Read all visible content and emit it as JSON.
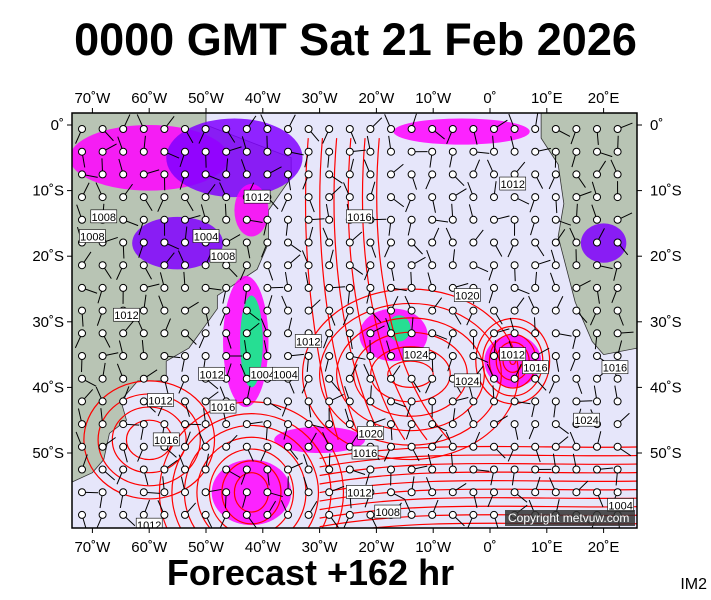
{
  "header": {
    "title": "0000 GMT Sat 21 Feb 2026"
  },
  "footer": {
    "forecast": "Forecast +162 hr",
    "image_id": "IM2"
  },
  "map": {
    "longitude_labels": [
      "70˚W",
      "60˚W",
      "50˚W",
      "40˚W",
      "30˚W",
      "20˚W",
      "10˚W",
      "0˚",
      "10˚E",
      "20˚E"
    ],
    "latitude_labels": [
      "0˚",
      "10˚S",
      "20˚S",
      "30˚S",
      "40˚S",
      "50˚S"
    ],
    "isobar_labels": [
      "1012",
      "1016",
      "1012",
      "1008",
      "1004",
      "1008",
      "1012",
      "1004",
      "1008",
      "1020",
      "1012",
      "1024",
      "1024",
      "1012",
      "1016",
      "1016",
      "1004",
      "1012",
      "1016",
      "1020",
      "1016",
      "1012",
      "1008",
      "1024",
      "1004",
      "1012",
      "1016",
      "1012"
    ],
    "copyright": "Copyright metvuw.com",
    "colors": {
      "ocean": "#e6e6fa",
      "land": "#b8c4b4",
      "isobar": "#ff0000",
      "rain_light": "#ff00ff",
      "rain_mid": "#8000ff",
      "rain_heavy": "#00ff80"
    }
  }
}
